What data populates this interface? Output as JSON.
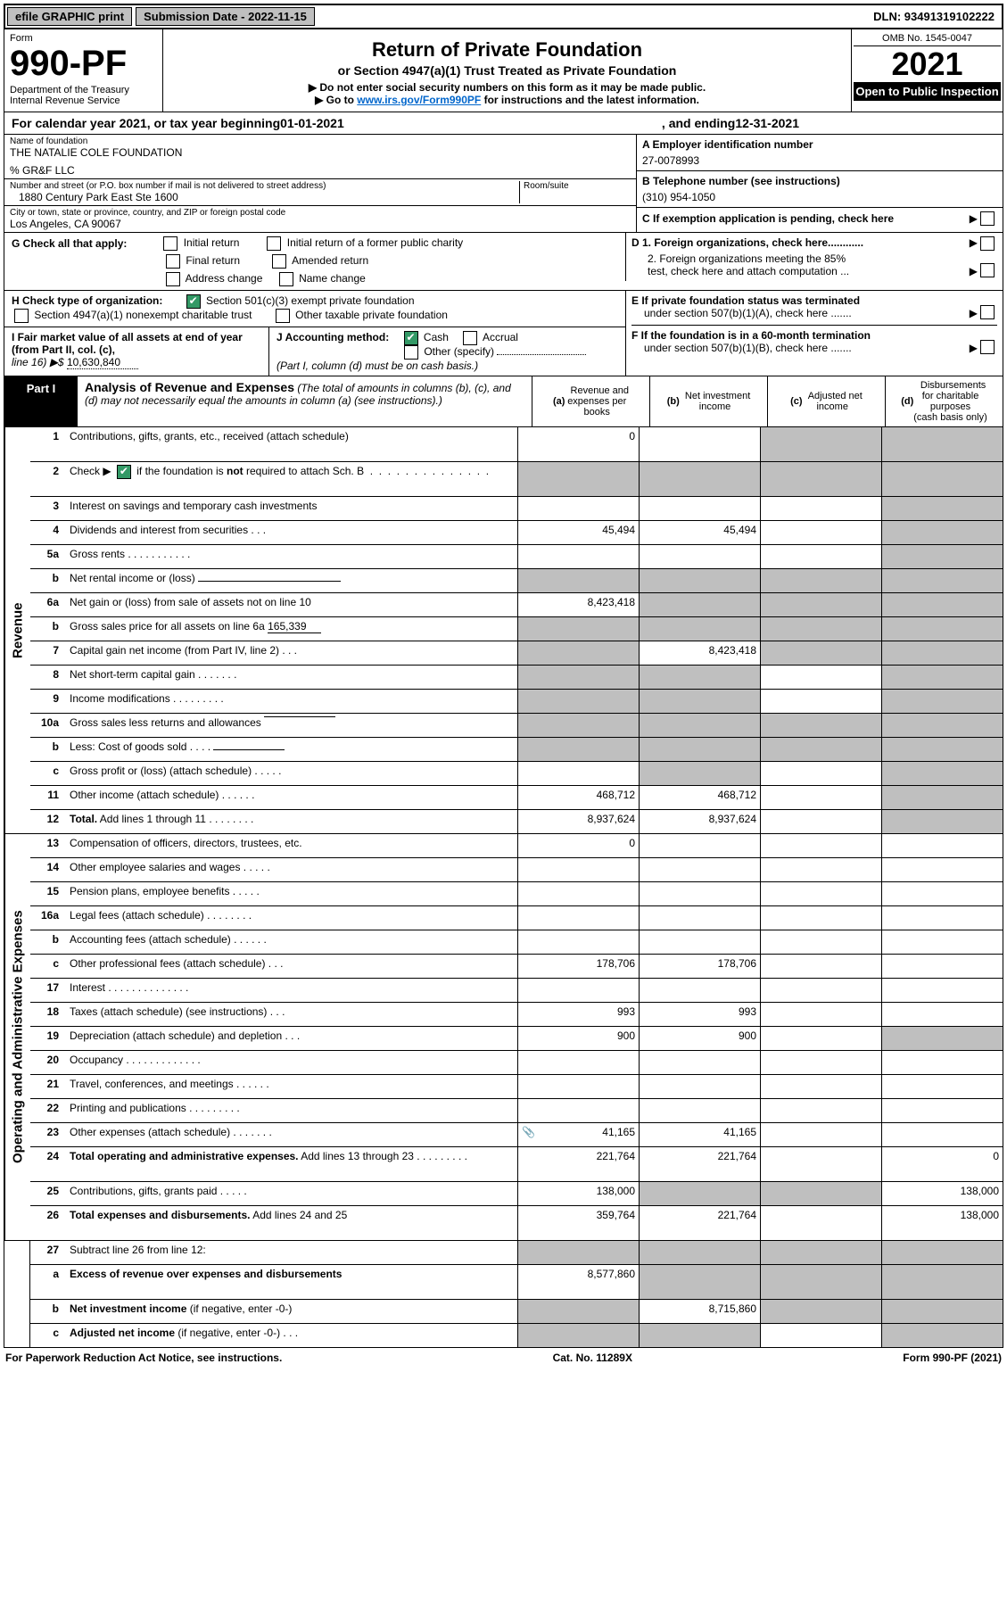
{
  "top_bar": {
    "efile": "efile GRAPHIC print",
    "submission": "Submission Date - 2022-11-15",
    "dln": "DLN: 93491319102222"
  },
  "header": {
    "form_label": "Form",
    "form_no": "990-PF",
    "dept": "Department of the Treasury",
    "irs": "Internal Revenue Service",
    "title": "Return of Private Foundation",
    "subtitle": "or Section 4947(a)(1) Trust Treated as Private Foundation",
    "note1": "▶ Do not enter social security numbers on this form as it may be made public.",
    "note2_pre": "▶ Go to ",
    "note2_link": "www.irs.gov/Form990PF",
    "note2_post": " for instructions and the latest information.",
    "omb": "OMB No. 1545-0047",
    "year": "2021",
    "inspect": "Open to Public Inspection"
  },
  "cal_year": {
    "pre": "For calendar year 2021, or tax year beginning ",
    "begin": "01-01-2021",
    "mid": " , and ending ",
    "end": "12-31-2021"
  },
  "name_block": {
    "label": "Name of foundation",
    "name": "THE NATALIE COLE FOUNDATION",
    "care_of": "% GR&F LLC",
    "addr_label": "Number and street (or P.O. box number if mail is not delivered to street address)",
    "addr": "1880 Century Park East Ste 1600",
    "room_label": "Room/suite",
    "city_label": "City or town, state or province, country, and ZIP or foreign postal code",
    "city": "Los Angeles, CA  90067"
  },
  "right_info": {
    "a_label": "A Employer identification number",
    "a_val": "27-0078993",
    "b_label": "B Telephone number (see instructions)",
    "b_val": "(310) 954-1050",
    "c_label": "C If exemption application is pending, check here",
    "d1": "D 1. Foreign organizations, check here............",
    "d2a": "2. Foreign organizations meeting the 85%",
    "d2b": "test, check here and attach computation ...",
    "e1": "E  If private foundation status was terminated",
    "e2": "under section 507(b)(1)(A), check here .......",
    "f1": "F  If the foundation is in a 60-month termination",
    "f2": "under section 507(b)(1)(B), check here .......",
    "f_arrow": "▶"
  },
  "g_block": {
    "label": "G Check all that apply:",
    "initial": "Initial return",
    "initial_former": "Initial return of a former public charity",
    "final": "Final return",
    "amended": "Amended return",
    "addr_change": "Address change",
    "name_change": "Name change"
  },
  "h_block": {
    "label": "H Check type of organization:",
    "opt1": "Section 501(c)(3) exempt private foundation",
    "opt2": "Section 4947(a)(1) nonexempt charitable trust",
    "opt3": "Other taxable private foundation"
  },
  "i_block": {
    "label": "I Fair market value of all assets at end of year (from Part II, col. (c),",
    "line": "line 16) ▶$ ",
    "value": "10,630,840"
  },
  "j_block": {
    "label": "J Accounting method:",
    "cash": "Cash",
    "accrual": "Accrual",
    "other": "Other (specify)",
    "note": "(Part I, column (d) must be on cash basis.)"
  },
  "part1": {
    "label": "Part I",
    "title": "Analysis of Revenue and Expenses",
    "title_note": " (The total of amounts in columns (b), (c), and (d) may not necessarily equal the amounts in column (a) (see instructions).)",
    "col_a": "(a)  Revenue and expenses per books",
    "col_b": "(b)  Net investment income",
    "col_c": "(c)  Adjusted net income",
    "col_d": "(d)  Disbursements for charitable purposes (cash basis only)"
  },
  "sections": {
    "revenue": "Revenue",
    "expenses": "Operating and Administrative Expenses"
  },
  "rows": [
    {
      "n": "1",
      "d": "Contributions, gifts, grants, etc., received (attach schedule)",
      "a": "0",
      "b": "",
      "c": "shaded",
      "dcol": "shaded",
      "tall": true
    },
    {
      "n": "2",
      "d": "Check ▶ ☑ if the foundation is <b>not</b> required to attach Sch. B  .  .  .  .  .  .  .  .  .  .  .  .  .  .  .",
      "a": "shaded",
      "b": "shaded",
      "c": "shaded",
      "dcol": "shaded",
      "tall": true,
      "has_check": true
    },
    {
      "n": "3",
      "d": "Interest on savings and temporary cash investments",
      "a": "",
      "b": "",
      "c": "",
      "dcol": "shaded"
    },
    {
      "n": "4",
      "d": "Dividends and interest from securities   .   .   .",
      "a": "45,494",
      "b": "45,494",
      "c": "",
      "dcol": "shaded"
    },
    {
      "n": "5a",
      "d": "Gross rents   .   .   .   .   .   .   .   .   .   .   .",
      "a": "",
      "b": "",
      "c": "",
      "dcol": "shaded"
    },
    {
      "n": "b",
      "d": "Net rental income or (loss) <span class='inline-input-line' style='min-width:160px'></span>",
      "a": "shaded",
      "b": "shaded",
      "c": "shaded",
      "dcol": "shaded"
    },
    {
      "n": "6a",
      "d": "Net gain or (loss) from sale of assets not on line 10",
      "a": "8,423,418",
      "b": "shaded",
      "c": "shaded",
      "dcol": "shaded"
    },
    {
      "n": "b",
      "d": "Gross sales price for all assets on line 6a <span class='inline-input-line'>165,339</span>",
      "a": "shaded",
      "b": "shaded",
      "c": "shaded",
      "dcol": "shaded"
    },
    {
      "n": "7",
      "d": "Capital gain net income (from Part IV, line 2)   .   .   .",
      "a": "shaded",
      "b": "8,423,418",
      "c": "shaded",
      "dcol": "shaded"
    },
    {
      "n": "8",
      "d": "Net short-term capital gain   .   .   .   .   .   .   .",
      "a": "shaded",
      "b": "shaded",
      "c": "",
      "dcol": "shaded"
    },
    {
      "n": "9",
      "d": "Income modifications   .   .   .   .   .   .   .   .   .",
      "a": "shaded",
      "b": "shaded",
      "c": "",
      "dcol": "shaded"
    },
    {
      "n": "10a",
      "d": "Gross sales less returns and allowances <span class='inline-input-line' style='min-width:80px;border-bottom:1px solid #000;vertical-align:top'></span>",
      "a": "shaded",
      "b": "shaded",
      "c": "shaded",
      "dcol": "shaded"
    },
    {
      "n": "b",
      "d": "Less: Cost of goods sold   .   .   .   . <span class='inline-input-line' style='min-width:80px;border-bottom:1px solid #000'></span>",
      "a": "shaded",
      "b": "shaded",
      "c": "shaded",
      "dcol": "shaded"
    },
    {
      "n": "c",
      "d": "Gross profit or (loss) (attach schedule)   .   .   .   .   .",
      "a": "",
      "b": "shaded",
      "c": "",
      "dcol": "shaded"
    },
    {
      "n": "11",
      "d": "Other income (attach schedule)   .   .   .   .   .   .",
      "a": "468,712",
      "b": "468,712",
      "c": "",
      "dcol": "shaded"
    },
    {
      "n": "12",
      "d": "<b>Total.</b> Add lines 1 through 11   .   .   .   .   .   .   .   .",
      "a": "8,937,624",
      "b": "8,937,624",
      "c": "",
      "dcol": "shaded"
    }
  ],
  "exp_rows": [
    {
      "n": "13",
      "d": "Compensation of officers, directors, trustees, etc.",
      "a": "0",
      "b": "",
      "c": "",
      "dcol": ""
    },
    {
      "n": "14",
      "d": "Other employee salaries and wages   .   .   .   .   .",
      "a": "",
      "b": "",
      "c": "",
      "dcol": ""
    },
    {
      "n": "15",
      "d": "Pension plans, employee benefits   .   .   .   .   .",
      "a": "",
      "b": "",
      "c": "",
      "dcol": ""
    },
    {
      "n": "16a",
      "d": "Legal fees (attach schedule)   .   .   .   .   .   .   .   .",
      "a": "",
      "b": "",
      "c": "",
      "dcol": ""
    },
    {
      "n": "b",
      "d": "Accounting fees (attach schedule)   .   .   .   .   .   .",
      "a": "",
      "b": "",
      "c": "",
      "dcol": ""
    },
    {
      "n": "c",
      "d": "Other professional fees (attach schedule)   .   .   .",
      "a": "178,706",
      "b": "178,706",
      "c": "",
      "dcol": ""
    },
    {
      "n": "17",
      "d": "Interest   .   .   .   .   .   .   .   .   .   .   .   .   .   .",
      "a": "",
      "b": "",
      "c": "",
      "dcol": ""
    },
    {
      "n": "18",
      "d": "Taxes (attach schedule) (see instructions)    .   .   .",
      "a": "993",
      "b": "993",
      "c": "",
      "dcol": ""
    },
    {
      "n": "19",
      "d": "Depreciation (attach schedule) and depletion   .   .   .",
      "a": "900",
      "b": "900",
      "c": "",
      "dcol": "shaded"
    },
    {
      "n": "20",
      "d": "Occupancy   .   .   .   .   .   .   .   .   .   .   .   .   .",
      "a": "",
      "b": "",
      "c": "",
      "dcol": ""
    },
    {
      "n": "21",
      "d": "Travel, conferences, and meetings   .   .   .   .   .   .",
      "a": "",
      "b": "",
      "c": "",
      "dcol": ""
    },
    {
      "n": "22",
      "d": "Printing and publications   .   .   .   .   .   .   .   .   .",
      "a": "",
      "b": "",
      "c": "",
      "dcol": ""
    },
    {
      "n": "23",
      "d": "Other expenses (attach schedule)   .   .   .   .   .   .   .",
      "a": "41,165",
      "b": "41,165",
      "c": "",
      "dcol": "",
      "icon": true
    },
    {
      "n": "24",
      "d": "<b>Total operating and administrative expenses.</b> Add lines 13 through 23   .   .   .   .   .   .   .   .   .",
      "a": "221,764",
      "b": "221,764",
      "c": "",
      "dcol": "0",
      "tall": true
    },
    {
      "n": "25",
      "d": "Contributions, gifts, grants paid   .   .   .   .   .",
      "a": "138,000",
      "b": "shaded",
      "c": "shaded",
      "dcol": "138,000"
    },
    {
      "n": "26",
      "d": "<b>Total expenses and disbursements.</b> Add lines 24 and 25",
      "a": "359,764",
      "b": "221,764",
      "c": "",
      "dcol": "138,000",
      "tall": true
    }
  ],
  "bottom_rows": [
    {
      "n": "27",
      "d": "Subtract line 26 from line 12:",
      "a": "shaded",
      "b": "shaded",
      "c": "shaded",
      "dcol": "shaded"
    },
    {
      "n": "a",
      "d": "<b>Excess of revenue over expenses and disbursements</b>",
      "a": "8,577,860",
      "b": "shaded",
      "c": "shaded",
      "dcol": "shaded",
      "tall": true
    },
    {
      "n": "b",
      "d": "<b>Net investment income</b> (if negative, enter -0-)",
      "a": "shaded",
      "b": "8,715,860",
      "c": "shaded",
      "dcol": "shaded"
    },
    {
      "n": "c",
      "d": "<b>Adjusted net income</b> (if negative, enter -0-)   .   .   .",
      "a": "shaded",
      "b": "shaded",
      "c": "",
      "dcol": "shaded"
    }
  ],
  "footer": {
    "left": "For Paperwork Reduction Act Notice, see instructions.",
    "mid": "Cat. No. 11289X",
    "right": "Form 990-PF (2021)"
  },
  "colors": {
    "shaded": "#bfbfbf",
    "check_green": "#339966",
    "link": "#0066cc"
  }
}
